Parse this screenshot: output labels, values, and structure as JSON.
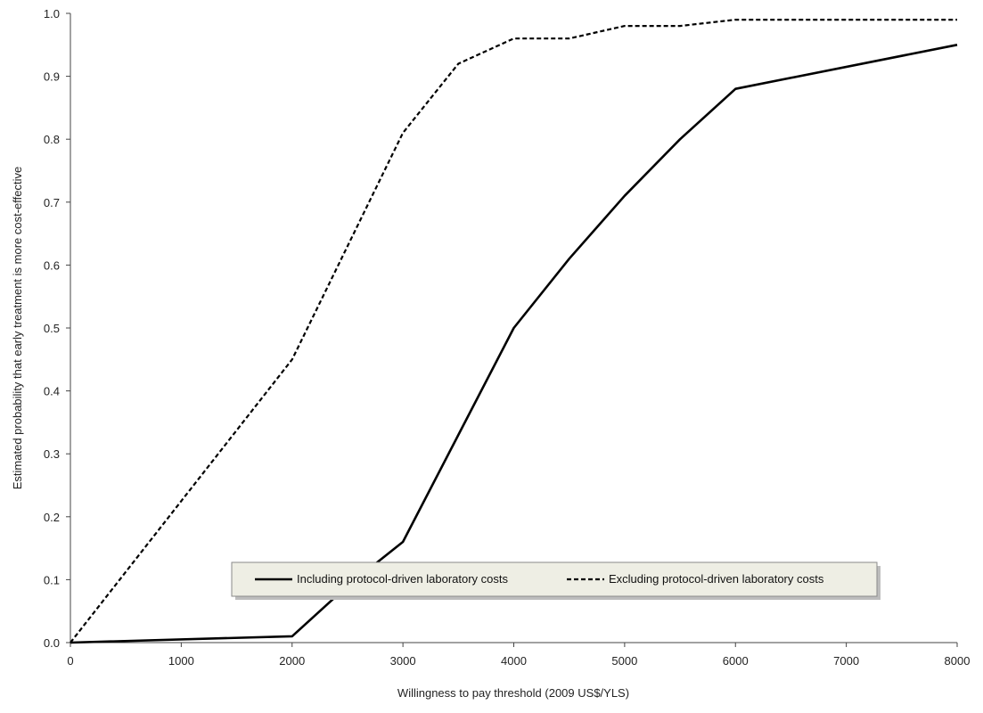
{
  "chart_data": {
    "type": "line",
    "title": "",
    "xlabel": "Willingness to pay threshold (2009 US$/YLS)",
    "ylabel": "Estimated probability that early treatment is more cost-effective",
    "xlim": [
      0,
      8000
    ],
    "ylim": [
      0,
      1.0
    ],
    "xticks": [
      0,
      1000,
      2000,
      3000,
      4000,
      5000,
      6000,
      7000,
      8000
    ],
    "xtick_labels": [
      "0",
      "1000",
      "2000",
      "3000",
      "4000",
      "5000",
      "6000",
      "7000",
      "8000"
    ],
    "yticks": [
      0,
      0.1,
      0.2,
      0.3,
      0.4,
      0.5,
      0.6,
      0.7,
      0.8,
      0.9,
      1.0
    ],
    "ytick_labels": [
      "0.0",
      "0.1",
      "0.2",
      "0.3",
      "0.4",
      "0.5",
      "0.6",
      "0.7",
      "0.8",
      "0.9",
      "1.0"
    ],
    "grid": false,
    "legend_position": "bottom-center",
    "series": [
      {
        "name": "Including protocol-driven laboratory costs",
        "style": "solid",
        "color": "#000000",
        "x": [
          0,
          2000,
          2500,
          3000,
          3500,
          4000,
          4500,
          5000,
          5500,
          6000,
          8000
        ],
        "y": [
          0.0,
          0.01,
          0.09,
          0.16,
          0.33,
          0.5,
          0.61,
          0.71,
          0.8,
          0.88,
          0.95
        ]
      },
      {
        "name": "Excluding protocol-driven laboratory costs",
        "style": "dashed",
        "color": "#000000",
        "x": [
          0,
          2000,
          3000,
          3500,
          4000,
          4500,
          5000,
          5500,
          6000,
          8000
        ],
        "y": [
          0.0,
          0.45,
          0.81,
          0.92,
          0.96,
          0.96,
          0.98,
          0.98,
          0.99,
          0.99
        ]
      }
    ]
  }
}
